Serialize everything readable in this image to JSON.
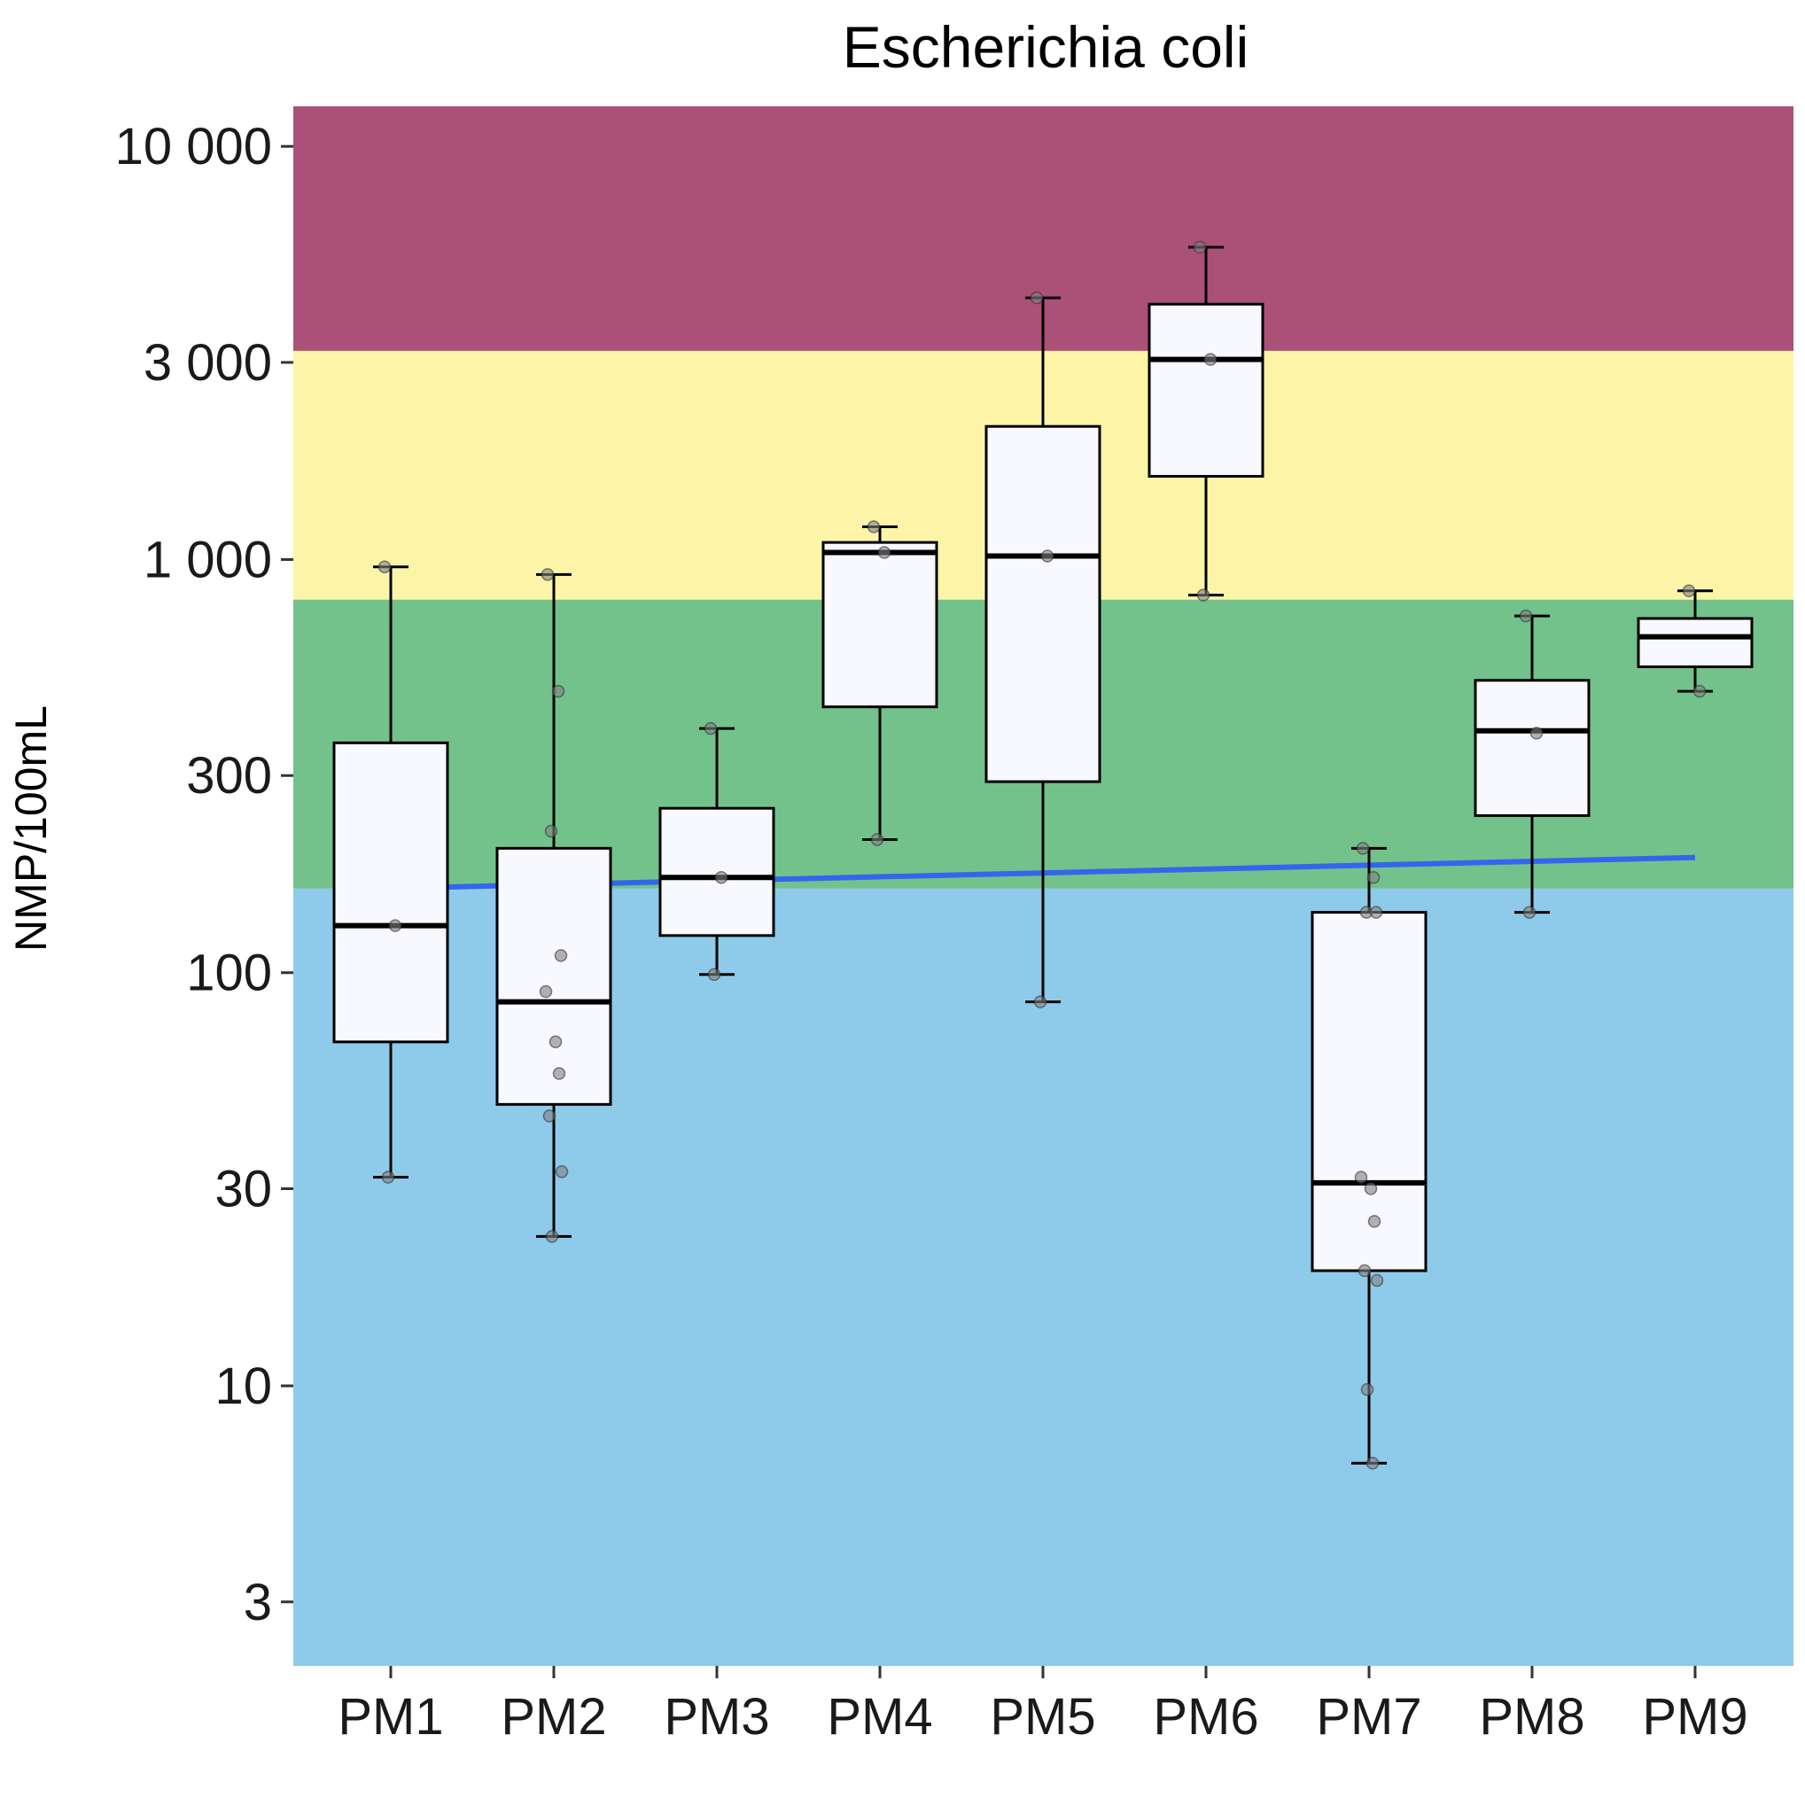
{
  "chart_data": {
    "type": "box",
    "title": "Escherichia coli",
    "xlabel": "",
    "ylabel": "NMP/100mL",
    "y_scale": "log10",
    "ylim": [
      2.1,
      12500
    ],
    "y_ticks": [
      {
        "value": 3,
        "label": "3"
      },
      {
        "value": 10,
        "label": "10"
      },
      {
        "value": 30,
        "label": "30"
      },
      {
        "value": 100,
        "label": "100"
      },
      {
        "value": 300,
        "label": "300"
      },
      {
        "value": 1000,
        "label": "1 000"
      },
      {
        "value": 3000,
        "label": "3 000"
      },
      {
        "value": 10000,
        "label": "10 000"
      }
    ],
    "grid": false,
    "legend": "none",
    "bands": [
      {
        "from": 2.1,
        "to": 160,
        "color": "#8ecae9"
      },
      {
        "from": 160,
        "to": 800,
        "color": "#73c28b"
      },
      {
        "from": 800,
        "to": 3200,
        "color": "#fcf5a8"
      },
      {
        "from": 3200,
        "to": 12500,
        "color": "#ab5076"
      }
    ],
    "categories": [
      "PM1",
      "PM2",
      "PM3",
      "PM4",
      "PM5",
      "PM6",
      "PM7",
      "PM8",
      "PM9"
    ],
    "boxes": [
      {
        "category": "PM1",
        "min": 32,
        "q1": 68,
        "median": 130,
        "q3": 360,
        "max": 960
      },
      {
        "category": "PM2",
        "min": 23,
        "q1": 48,
        "median": 85,
        "q3": 200,
        "max": 920
      },
      {
        "category": "PM3",
        "min": 99,
        "q1": 123,
        "median": 170,
        "q3": 250,
        "max": 390
      },
      {
        "category": "PM4",
        "min": 210,
        "q1": 440,
        "median": 1040,
        "q3": 1100,
        "max": 1200
      },
      {
        "category": "PM5",
        "min": 85,
        "q1": 290,
        "median": 1020,
        "q3": 2100,
        "max": 4300
      },
      {
        "category": "PM6",
        "min": 820,
        "q1": 1590,
        "median": 3050,
        "q3": 4150,
        "max": 5700
      },
      {
        "category": "PM7",
        "min": 6.5,
        "q1": 19,
        "median": 31,
        "q3": 140,
        "max": 200
      },
      {
        "category": "PM8",
        "min": 140,
        "q1": 240,
        "median": 385,
        "q3": 510,
        "max": 730
      },
      {
        "category": "PM9",
        "min": 480,
        "q1": 550,
        "median": 650,
        "q3": 720,
        "max": 840
      }
    ],
    "points": [
      {
        "category": "PM1",
        "values": [
          960,
          130,
          32
        ]
      },
      {
        "category": "PM2",
        "values": [
          920,
          480,
          220,
          110,
          90,
          68,
          57,
          45,
          33,
          23
        ]
      },
      {
        "category": "PM3",
        "values": [
          390,
          170,
          99
        ]
      },
      {
        "category": "PM4",
        "values": [
          1200,
          1040,
          210
        ]
      },
      {
        "category": "PM5",
        "values": [
          4300,
          1020,
          85
        ]
      },
      {
        "category": "PM6",
        "values": [
          5700,
          3050,
          820
        ]
      },
      {
        "category": "PM7",
        "values": [
          200,
          170,
          140,
          140,
          32,
          30,
          25,
          19,
          18,
          9.8,
          6.5
        ]
      },
      {
        "category": "PM8",
        "values": [
          730,
          380,
          140
        ]
      },
      {
        "category": "PM9",
        "values": [
          840,
          480
        ]
      }
    ],
    "trend_line": {
      "color": "#3366ee",
      "from": {
        "category": "PM1",
        "value": 160
      },
      "to": {
        "category": "PM9",
        "value": 190
      }
    },
    "box_fill": "#f8f8ff",
    "point_color": "#808080"
  }
}
